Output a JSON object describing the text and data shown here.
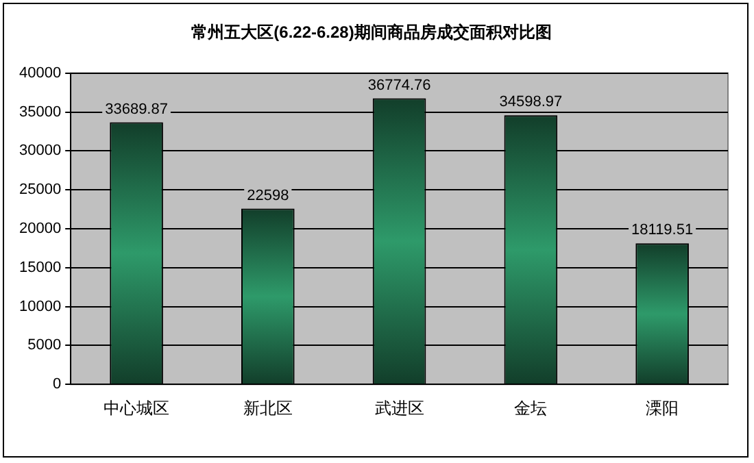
{
  "chart_data": {
    "type": "bar",
    "title": "常州五大区(6.22-6.28)期间商品房成交面积对比图",
    "categories": [
      "中心城区",
      "新北区",
      "武进区",
      "金坛",
      "溧阳"
    ],
    "values": [
      33689.87,
      22598,
      36774.76,
      34598.97,
      18119.51
    ],
    "color": "#2e9a6a",
    "ylim": [
      0,
      40000
    ],
    "yticks": [
      0,
      5000,
      10000,
      15000,
      20000,
      25000,
      30000,
      35000,
      40000
    ],
    "grid": "y",
    "data_labels": true,
    "legend": false
  }
}
